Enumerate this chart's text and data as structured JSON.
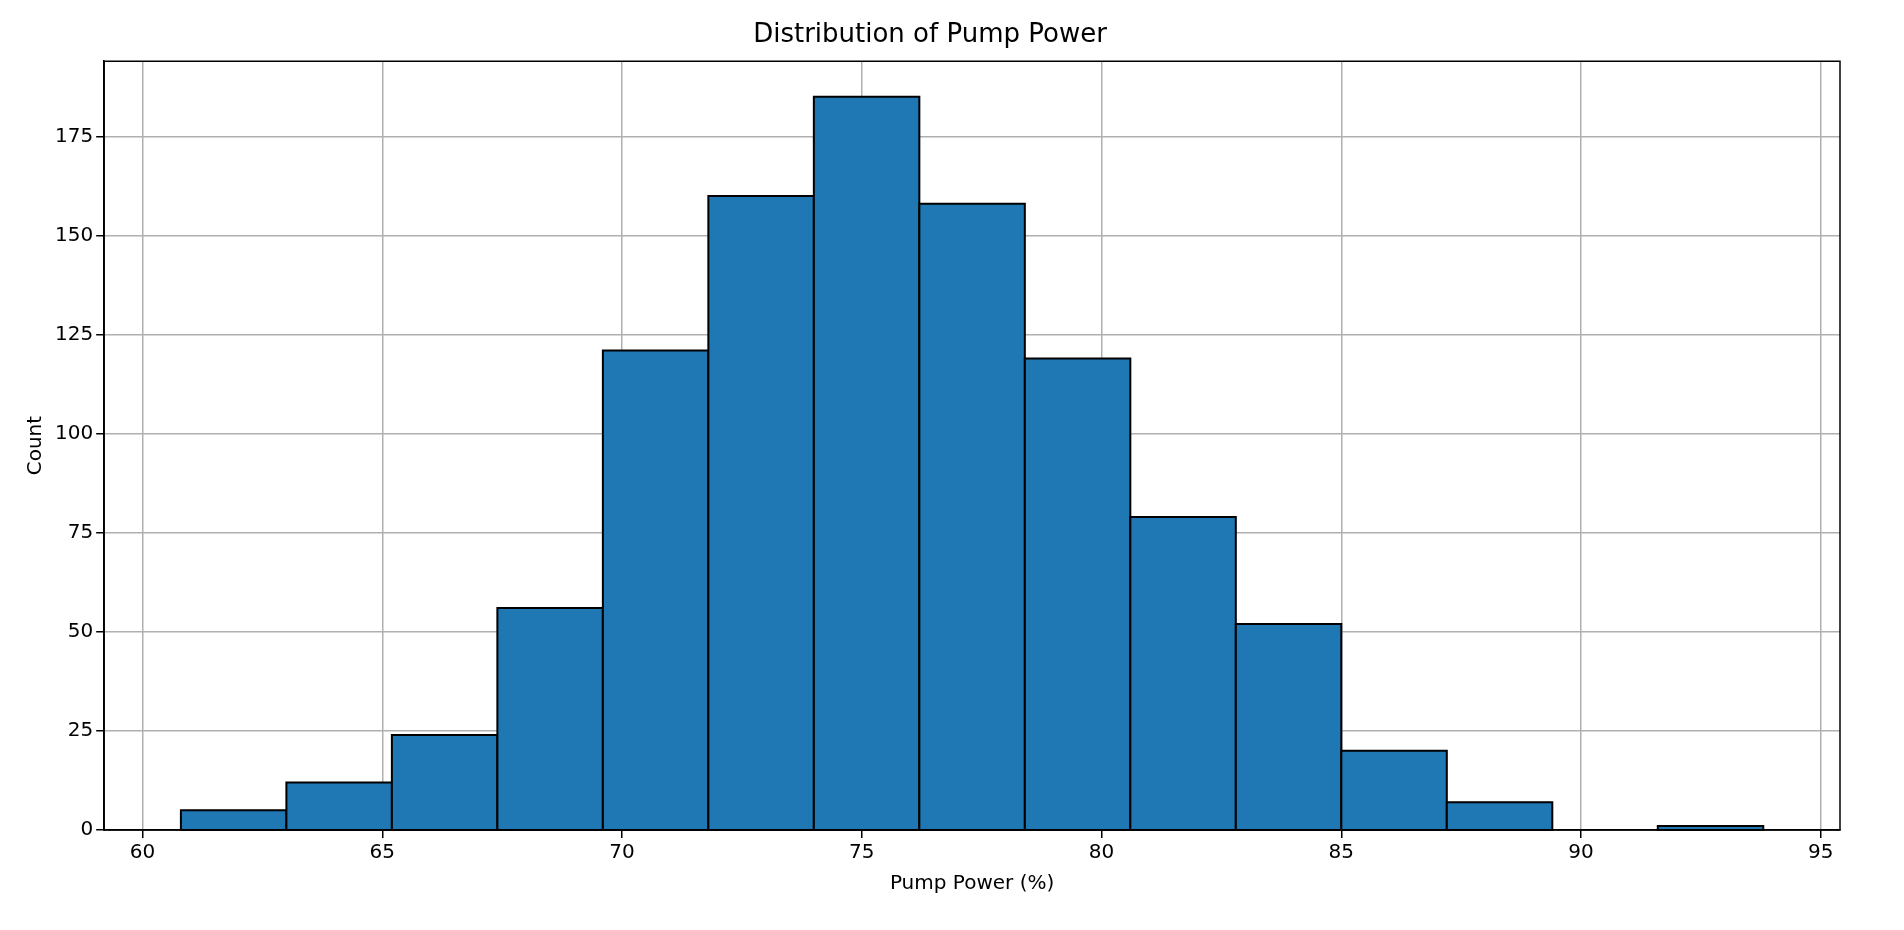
{
  "chart_data": {
    "type": "histogram",
    "title": "Distribution of Pump Power",
    "xlabel": "Pump Power (%)",
    "ylabel": "Count",
    "bins": [
      60.8,
      63.0,
      65.2,
      67.4,
      69.6,
      71.8,
      74.0,
      76.2,
      78.4,
      80.6,
      82.8,
      85.0,
      87.2,
      89.4,
      91.6,
      93.8
    ],
    "values": [
      5,
      12,
      24,
      56,
      121,
      160,
      185,
      158,
      119,
      79,
      52,
      20,
      7,
      0,
      1
    ],
    "color": "#1f77b4",
    "xlim": [
      59.2,
      95.4
    ],
    "xticks": [
      60,
      65,
      70,
      75,
      80,
      85,
      90,
      95
    ],
    "ylim": [
      0,
      194
    ],
    "yticks": [
      0,
      25,
      50,
      75,
      100,
      125,
      150,
      175
    ],
    "grid": true,
    "legend": false
  }
}
